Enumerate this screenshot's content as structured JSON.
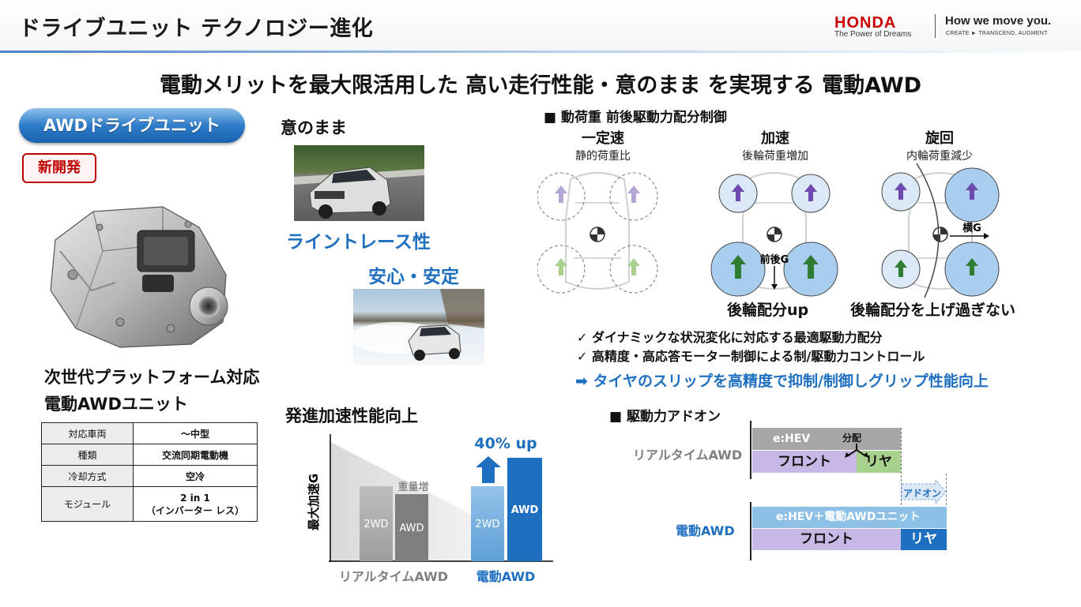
{
  "header": {
    "title": "ドライブユニット テクノロジー進化",
    "brand": "HONDA",
    "brand_tagline": "The Power of Dreams",
    "slogan": "How we move you.",
    "slogan_sub": "CREATE ► TRANSCEND, AUGMENT"
  },
  "headline": "電動メリットを最大限活用した 高い走行性能・意のまま を実現する 電動AWD",
  "left": {
    "badge": "AWDドライブユニット",
    "new_tag": "新開発",
    "caption_line1": "次世代プラットフォーム対応",
    "caption_line2": "電動AWDユニット",
    "spec": [
      {
        "key": "対応車両",
        "value": "～中型"
      },
      {
        "key": "種類",
        "value": "交流同期電動機"
      },
      {
        "key": "冷却方式",
        "value": "空冷"
      },
      {
        "key": "モジュール",
        "value": "2 in 1",
        "value2": "（インバーター レス）"
      }
    ]
  },
  "middle": {
    "heading": "意のまま",
    "label_line": "ライントレース性",
    "label_anshin": "安心・安定",
    "accel_title": "発進加速性能向上",
    "accel_chart": {
      "ylabel": "最大加速G",
      "up_label": "40% up",
      "weight_note": "重量増",
      "bars": [
        {
          "label": "2WD",
          "group": "リアルタイムAWD"
        },
        {
          "label": "AWD",
          "group": "リアルタイムAWD"
        },
        {
          "label": "2WD",
          "group": "電動AWD"
        },
        {
          "label": "AWD",
          "group": "電動AWD"
        }
      ],
      "group_labels": [
        "リアルタイムAWD",
        "電動AWD"
      ]
    }
  },
  "right": {
    "section1": "■ 動荷重 前後駆動力配分制御",
    "columns": [
      {
        "title": "一定速",
        "sub": "静的荷重比"
      },
      {
        "title": "加速",
        "sub": "後輪荷重増加"
      },
      {
        "title": "旋回",
        "sub": "内輪荷重減少"
      }
    ],
    "fb_g": "前後G",
    "lat_g": "横G",
    "result_accel": "後輪配分up",
    "result_turn": "後輪配分を上げ過ぎない",
    "checks": [
      "✓ ダイナミックな状況変化に対応する最適駆動力配分",
      "✓ 高精度・高応答モーター制御による制/駆動力コントロール"
    ],
    "conclusion": "➡ タイヤのスリップを高精度で抑制/制御しグリップ性能向上",
    "section2": "■ 駆動力アドオン",
    "rt_awd_label": "リアルタイムAWD",
    "e_awd_label": "電動AWD",
    "ehev": "e:HEV",
    "split": "分配",
    "front": "フロント",
    "rear": "リヤ",
    "ehev_plus": "e:HEV＋電動AWDユニット",
    "addon": "アドオン"
  },
  "colors": {
    "accent_blue": "#1f6fc0",
    "honda_red": "#cc0000",
    "front_purple": "#c7b8e6",
    "rear_green": "#a9d18e",
    "rear_blue": "#1e6fc0",
    "ehev_gray": "#a6a6a6",
    "ehev_light_blue": "#8dc0e6"
  }
}
